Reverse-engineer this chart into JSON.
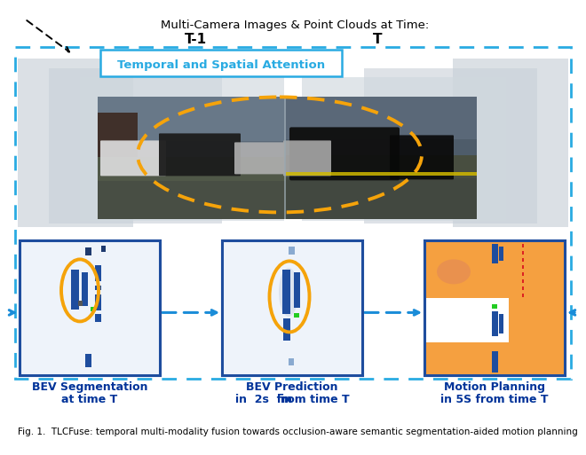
{
  "title_top": "Multi-Camera Images & Point Clouds at Time:",
  "title_t1": "T-1",
  "title_t": "T",
  "attention_label": "Temporal and Spatial Attention",
  "caption": "Fig. 1.  TLCFuse: temporal multi-modality fusion towards occlusion-aware semantic segmentation-aided motion planning",
  "bev1_label1": "BEV Segmentation",
  "bev1_label2": "at time T",
  "bev2_label1": "BEV Prediction",
  "bev2_label2a": "in ",
  "bev2_label2b": "2s",
  "bev2_label2c": " from time T",
  "bev3_label1": "Motion Planning",
  "bev3_label2": "in 5S from time T",
  "bg": "#ffffff",
  "dark_blue": "#003399",
  "panel_blue": "#1e4d9e",
  "arrow_blue": "#1a8cd8",
  "dashed_blue": "#29abe2",
  "orange": "#f5a30a",
  "orange_map": "#f5a040",
  "green": "#22cc22",
  "red": "#dd2222",
  "cam_gray_outer": "#c0c8d0",
  "cam_gray_mid": "#ccd4da",
  "cam_bg": "#8090a0"
}
